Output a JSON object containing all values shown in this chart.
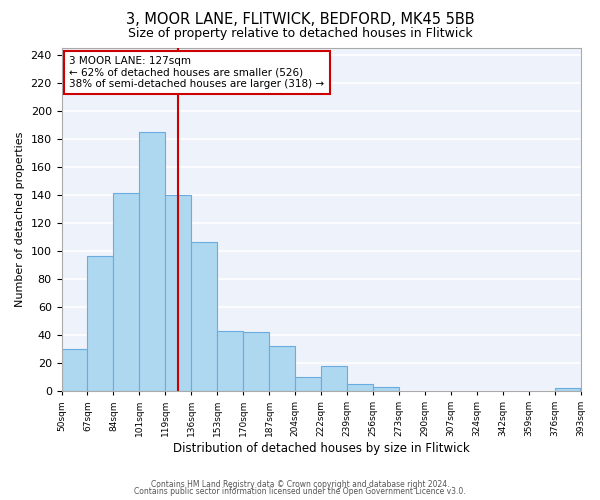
{
  "title": "3, MOOR LANE, FLITWICK, BEDFORD, MK45 5BB",
  "subtitle": "Size of property relative to detached houses in Flitwick",
  "xlabel": "Distribution of detached houses by size in Flitwick",
  "ylabel": "Number of detached properties",
  "bar_color": "#add8f0",
  "bar_edge_color": "#6aabe0",
  "bg_color": "#eef2fb",
  "grid_color": "white",
  "annotation_box_color": "#cc0000",
  "vline_color": "#cc0000",
  "vline_x": 127,
  "annotation_line1": "3 MOOR LANE: 127sqm",
  "annotation_line2": "← 62% of detached houses are smaller (526)",
  "annotation_line3": "38% of semi-detached houses are larger (318) →",
  "footer1": "Contains HM Land Registry data © Crown copyright and database right 2024.",
  "footer2": "Contains public sector information licensed under the Open Government Licence v3.0.",
  "bin_edges": [
    50,
    67,
    84,
    101,
    119,
    136,
    153,
    170,
    187,
    204,
    222,
    239,
    256,
    273,
    290,
    307,
    324,
    342,
    359,
    376,
    393
  ],
  "bin_labels": [
    "50sqm",
    "67sqm",
    "84sqm",
    "101sqm",
    "119sqm",
    "136sqm",
    "153sqm",
    "170sqm",
    "187sqm",
    "204sqm",
    "222sqm",
    "239sqm",
    "256sqm",
    "273sqm",
    "290sqm",
    "307sqm",
    "324sqm",
    "342sqm",
    "359sqm",
    "376sqm",
    "393sqm"
  ],
  "counts": [
    30,
    96,
    141,
    185,
    140,
    106,
    43,
    42,
    32,
    10,
    18,
    5,
    3,
    0,
    0,
    0,
    0,
    0,
    0,
    2
  ],
  "ylim": [
    0,
    245
  ],
  "yticks": [
    0,
    20,
    40,
    60,
    80,
    100,
    120,
    140,
    160,
    180,
    200,
    220,
    240
  ]
}
